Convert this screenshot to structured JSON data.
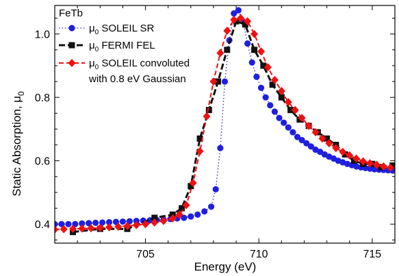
{
  "chart_data": {
    "type": "scatter",
    "annotation": "FeTb",
    "xlabel": "Energy (eV)",
    "ylabel": "Static Absorption, μ",
    "ylabel_sub": "0",
    "xlim": [
      701,
      716
    ],
    "ylim": [
      0.34,
      1.09
    ],
    "xticks": [
      705,
      710,
      715
    ],
    "yticks": [
      0.4,
      0.6,
      0.8,
      1.0
    ],
    "ytick_labels": [
      "0.4",
      "0.6",
      "0.8",
      "1.0"
    ],
    "legend_position": "top-left",
    "series": [
      {
        "name": "μ0 SOLEIL SR",
        "legend_prefix": "μ",
        "legend_sub": "0",
        "legend_text": "SOLEIL SR",
        "color": "#1f1fe0",
        "marker": "circle",
        "line": "dotted",
        "x": [
          701.0,
          701.3,
          701.6,
          701.9,
          702.2,
          702.5,
          702.8,
          703.1,
          703.4,
          703.7,
          704.0,
          704.3,
          704.6,
          704.9,
          705.2,
          705.5,
          705.8,
          706.1,
          706.4,
          706.7,
          707.0,
          707.3,
          707.6,
          707.9,
          708.1,
          708.3,
          708.5,
          708.7,
          708.9,
          709.1,
          709.3,
          709.5,
          709.7,
          709.9,
          710.1,
          710.3,
          710.5,
          710.7,
          710.9,
          711.1,
          711.3,
          711.5,
          711.7,
          711.9,
          712.1,
          712.3,
          712.5,
          712.7,
          712.9,
          713.1,
          713.3,
          713.5,
          713.7,
          713.9,
          714.1,
          714.3,
          714.5,
          714.7,
          714.9,
          715.1,
          715.3,
          715.5,
          715.7,
          715.9
        ],
        "y": [
          0.4,
          0.4,
          0.4,
          0.4,
          0.402,
          0.403,
          0.404,
          0.405,
          0.406,
          0.407,
          0.408,
          0.409,
          0.41,
          0.411,
          0.412,
          0.413,
          0.414,
          0.416,
          0.418,
          0.42,
          0.424,
          0.43,
          0.44,
          0.455,
          0.51,
          0.64,
          0.85,
          0.98,
          1.065,
          1.075,
          1.04,
          0.97,
          0.91,
          0.865,
          0.83,
          0.8,
          0.775,
          0.755,
          0.735,
          0.72,
          0.705,
          0.69,
          0.675,
          0.665,
          0.655,
          0.645,
          0.635,
          0.628,
          0.62,
          0.613,
          0.607,
          0.6,
          0.595,
          0.59,
          0.586,
          0.582,
          0.579,
          0.577,
          0.575,
          0.573,
          0.572,
          0.571,
          0.57,
          0.569
        ]
      },
      {
        "name": "μ0 FERMI FEL",
        "legend_prefix": "μ",
        "legend_sub": "0",
        "legend_text": "FERMI FEL",
        "color": "#111111",
        "marker": "square",
        "line": "dashed",
        "x": [
          701.8,
          703.0,
          704.2,
          705.4,
          706.2,
          706.6,
          707.0,
          707.4,
          707.8,
          708.2,
          708.6,
          709.0,
          709.4,
          709.8,
          710.2,
          710.6,
          711.0,
          711.4,
          711.8,
          712.2,
          712.6,
          713.0,
          713.4,
          713.8,
          714.2,
          714.6,
          715.0,
          715.4,
          715.9
        ],
        "y": [
          0.375,
          0.385,
          0.385,
          0.42,
          0.43,
          0.45,
          0.52,
          0.67,
          0.76,
          0.85,
          0.95,
          1.04,
          1.03,
          0.95,
          0.9,
          0.84,
          0.8,
          0.76,
          0.73,
          0.71,
          0.69,
          0.67,
          0.65,
          0.62,
          0.6,
          0.59,
          0.59,
          0.58,
          0.585
        ]
      },
      {
        "name": "μ0 SOLEIL convoluted with 0.8 eV Gaussian",
        "legend_prefix": "μ",
        "legend_sub": "0",
        "legend_text": "SOLEIL convoluted",
        "legend_text2": "with 0.8 eV Gaussian",
        "color": "#ee1111",
        "marker": "diamond",
        "line": "dashed",
        "x": [
          701.0,
          701.4,
          701.8,
          702.2,
          702.6,
          703.0,
          703.4,
          703.8,
          704.2,
          704.6,
          705.0,
          705.4,
          705.8,
          706.2,
          706.5,
          706.8,
          707.1,
          707.4,
          707.7,
          708.0,
          708.3,
          708.6,
          708.9,
          709.2,
          709.5,
          709.8,
          710.1,
          710.4,
          710.7,
          711.0,
          711.3,
          711.6,
          711.9,
          712.2,
          712.5,
          712.8,
          713.1,
          713.4,
          713.7,
          714.0,
          714.3,
          714.6,
          714.9,
          715.2,
          715.5,
          715.8
        ],
        "y": [
          0.383,
          0.384,
          0.385,
          0.386,
          0.387,
          0.388,
          0.39,
          0.392,
          0.394,
          0.397,
          0.4,
          0.405,
          0.41,
          0.418,
          0.43,
          0.46,
          0.53,
          0.63,
          0.74,
          0.85,
          0.94,
          1.01,
          1.045,
          1.05,
          1.04,
          1.0,
          0.945,
          0.895,
          0.855,
          0.82,
          0.785,
          0.76,
          0.735,
          0.71,
          0.69,
          0.67,
          0.655,
          0.64,
          0.628,
          0.617,
          0.607,
          0.598,
          0.592,
          0.587,
          0.582,
          0.578
        ]
      }
    ]
  }
}
